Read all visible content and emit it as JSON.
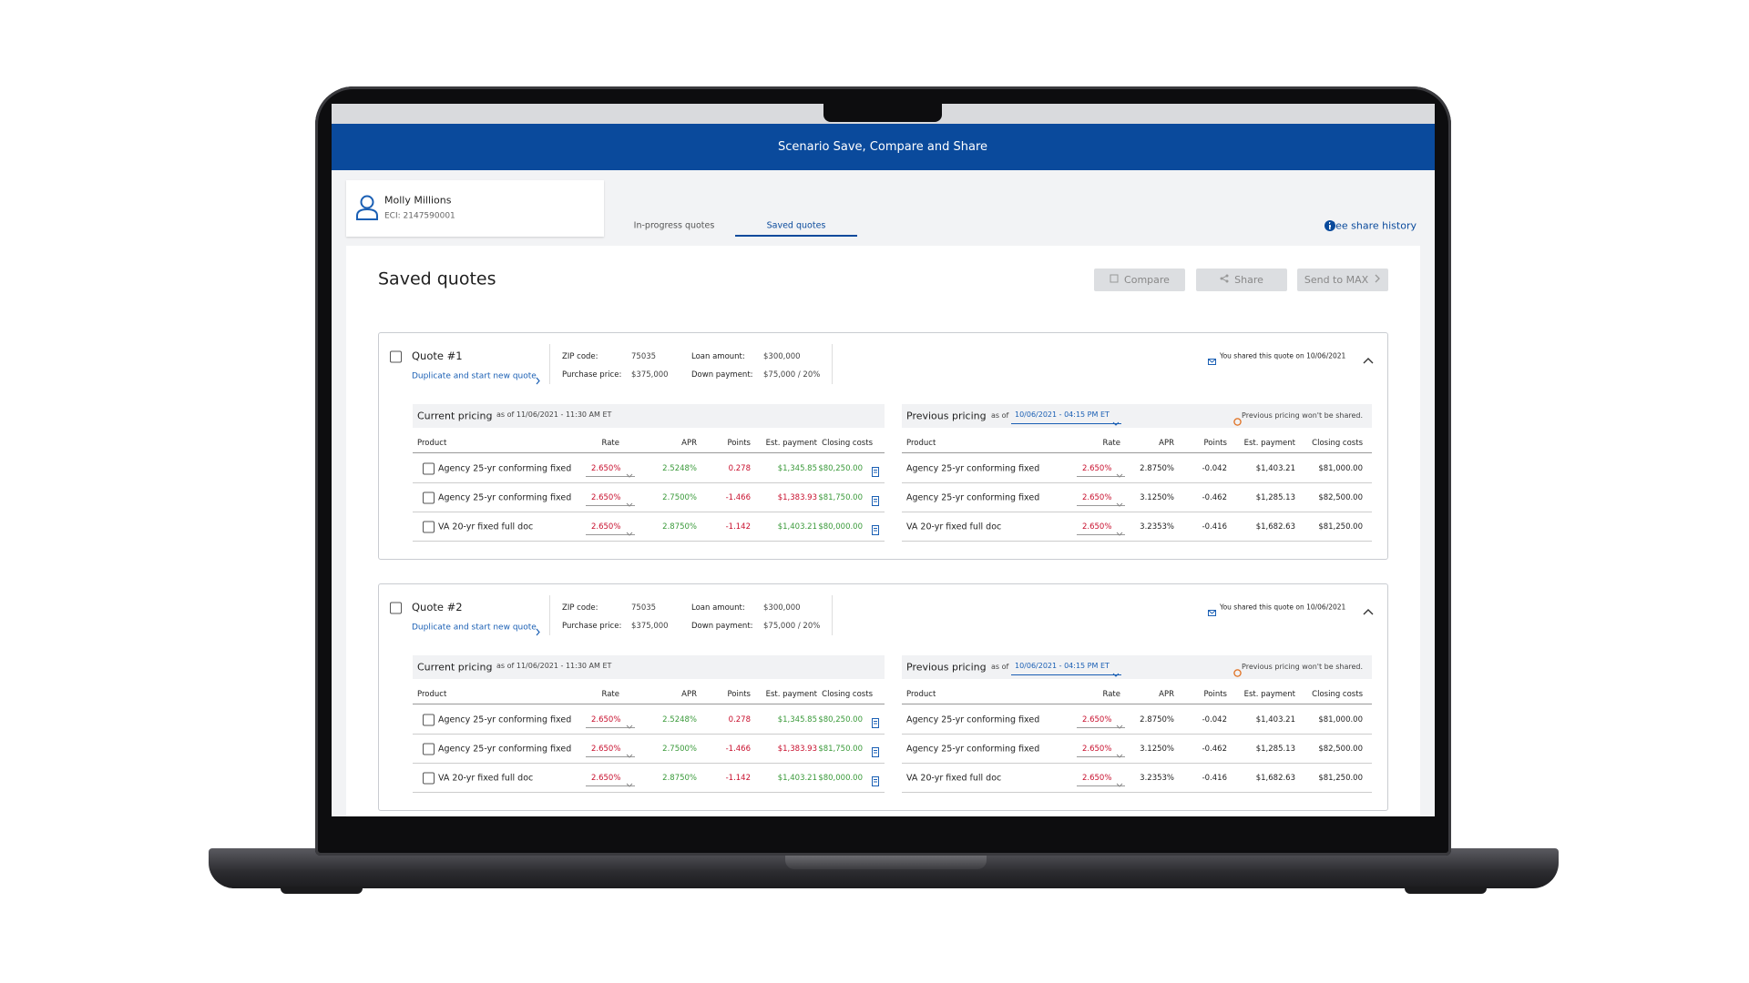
{
  "header": {
    "title": "Scenario Save, Compare and Share"
  },
  "customer": {
    "name": "Molly Millions",
    "eci": "ECI: 2147590001"
  },
  "tabs": [
    "In-progress quotes",
    "Saved quotes"
  ],
  "active_tab": 1,
  "share_history": "See share history",
  "page_title": "Saved quotes",
  "actions": [
    "Compare",
    "Share",
    "Send to MAX"
  ],
  "quotes": [
    {
      "title": "Quote #1",
      "link": "Duplicate and start new quote",
      "fields": [
        {
          "label": "ZIP code:",
          "value": "75035"
        },
        {
          "label": "Loan amount:",
          "value": "$300,000"
        },
        {
          "label": "Purchase price:",
          "value": "$375,000"
        },
        {
          "label": "Down payment:",
          "value": "$75,000 / 20%"
        }
      ],
      "shared_note": "You shared this quote on 10/06/2021",
      "current": {
        "label": "Current pricing",
        "as_of": "as of 11/06/2021 - 11:30 AM ET",
        "columns": [
          "Product",
          "Rate",
          "APR",
          "Points",
          "Est. payment",
          "Closing costs"
        ],
        "rows": [
          [
            "Agency 25-yr conforming fixed",
            "2.650%",
            "2.5248%",
            "0.278",
            "$1,345.85",
            "$80,250.00"
          ],
          [
            "Agency 25-yr conforming fixed",
            "2.650%",
            "2.7500%",
            "-1.466",
            "$1,383.93",
            "$81,750.00"
          ],
          [
            "VA 20-yr fixed full doc",
            "2.650%",
            "2.8750%",
            "-1.142",
            "$1,403.21",
            "$80,000.00"
          ]
        ],
        "cell_colors": [
          [
            "#1f1f1f",
            "#c8102e",
            "#3a9a3a",
            "#c8102e",
            "#3a9a3a",
            "#3a9a3a"
          ],
          [
            "#1f1f1f",
            "#c8102e",
            "#3a9a3a",
            "#c8102e",
            "#c8102e",
            "#3a9a3a"
          ],
          [
            "#1f1f1f",
            "#c8102e",
            "#3a9a3a",
            "#c8102e",
            "#3a9a3a",
            "#3a9a3a"
          ]
        ]
      },
      "previous": {
        "label": "Previous pricing",
        "as_of": "as of",
        "date": "10/06/2021 - 04:15 PM ET",
        "warning": "Previous pricing won't be shared.",
        "columns": [
          "Product",
          "Rate",
          "APR",
          "Points",
          "Est. payment",
          "Closing costs"
        ],
        "rows": [
          [
            "Agency 25-yr conforming fixed",
            "2.650%",
            "2.8750%",
            "-0.042",
            "$1,403.21",
            "$81,000.00"
          ],
          [
            "Agency 25-yr conforming fixed",
            "2.650%",
            "3.1250%",
            "-0.462",
            "$1,285.13",
            "$82,500.00"
          ],
          [
            "VA 20-yr fixed full doc",
            "2.650%",
            "3.2353%",
            "-0.416",
            "$1,682.63",
            "$81,250.00"
          ]
        ],
        "cell_colors": [
          [
            "#1f1f1f",
            "#c8102e",
            "#1f1f1f",
            "#1f1f1f",
            "#1f1f1f",
            "#1f1f1f"
          ],
          [
            "#1f1f1f",
            "#c8102e",
            "#1f1f1f",
            "#1f1f1f",
            "#1f1f1f",
            "#1f1f1f"
          ],
          [
            "#1f1f1f",
            "#c8102e",
            "#1f1f1f",
            "#1f1f1f",
            "#1f1f1f",
            "#1f1f1f"
          ]
        ]
      }
    },
    {
      "title": "Quote #2",
      "link": "Duplicate and start new quote",
      "fields": [
        {
          "label": "ZIP code:",
          "value": "75035"
        },
        {
          "label": "Loan amount:",
          "value": "$300,000"
        },
        {
          "label": "Purchase price:",
          "value": "$375,000"
        },
        {
          "label": "Down payment:",
          "value": "$75,000 / 20%"
        }
      ],
      "shared_note": "You shared this quote on 10/06/2021",
      "current": {
        "label": "Current pricing",
        "as_of": "as of 11/06/2021 - 11:30 AM ET",
        "columns": [
          "Product",
          "Rate",
          "APR",
          "Points",
          "Est. payment",
          "Closing costs"
        ],
        "rows": [
          [
            "Agency 25-yr conforming fixed",
            "2.650%",
            "2.5248%",
            "0.278",
            "$1,345.85",
            "$80,250.00"
          ],
          [
            "Agency 25-yr conforming fixed",
            "2.650%",
            "2.7500%",
            "-1.466",
            "$1,383.93",
            "$81,750.00"
          ],
          [
            "VA 20-yr fixed full doc",
            "2.650%",
            "2.8750%",
            "-1.142",
            "$1,403.21",
            "$80,000.00"
          ]
        ],
        "cell_colors": [
          [
            "#1f1f1f",
            "#c8102e",
            "#3a9a3a",
            "#c8102e",
            "#3a9a3a",
            "#3a9a3a"
          ],
          [
            "#1f1f1f",
            "#c8102e",
            "#3a9a3a",
            "#c8102e",
            "#c8102e",
            "#3a9a3a"
          ],
          [
            "#1f1f1f",
            "#c8102e",
            "#3a9a3a",
            "#c8102e",
            "#3a9a3a",
            "#3a9a3a"
          ]
        ]
      },
      "previous": {
        "label": "Previous pricing",
        "as_of": "as of",
        "date": "10/06/2021 - 04:15 PM ET",
        "warning": "Previous pricing won't be shared.",
        "columns": [
          "Product",
          "Rate",
          "APR",
          "Points",
          "Est. payment",
          "Closing costs"
        ],
        "rows": [
          [
            "Agency 25-yr conforming fixed",
            "2.650%",
            "2.8750%",
            "-0.042",
            "$1,403.21",
            "$81,000.00"
          ],
          [
            "Agency 25-yr conforming fixed",
            "2.650%",
            "3.1250%",
            "-0.462",
            "$1,285.13",
            "$82,500.00"
          ],
          [
            "VA 20-yr fixed full doc",
            "2.650%",
            "3.2353%",
            "-0.416",
            "$1,682.63",
            "$81,250.00"
          ]
        ],
        "cell_colors": [
          [
            "#1f1f1f",
            "#c8102e",
            "#1f1f1f",
            "#1f1f1f",
            "#1f1f1f",
            "#1f1f1f"
          ],
          [
            "#1f1f1f",
            "#c8102e",
            "#1f1f1f",
            "#1f1f1f",
            "#1f1f1f",
            "#1f1f1f"
          ],
          [
            "#1f1f1f",
            "#c8102e",
            "#1f1f1f",
            "#1f1f1f",
            "#1f1f1f",
            "#1f1f1f"
          ]
        ]
      }
    }
  ]
}
